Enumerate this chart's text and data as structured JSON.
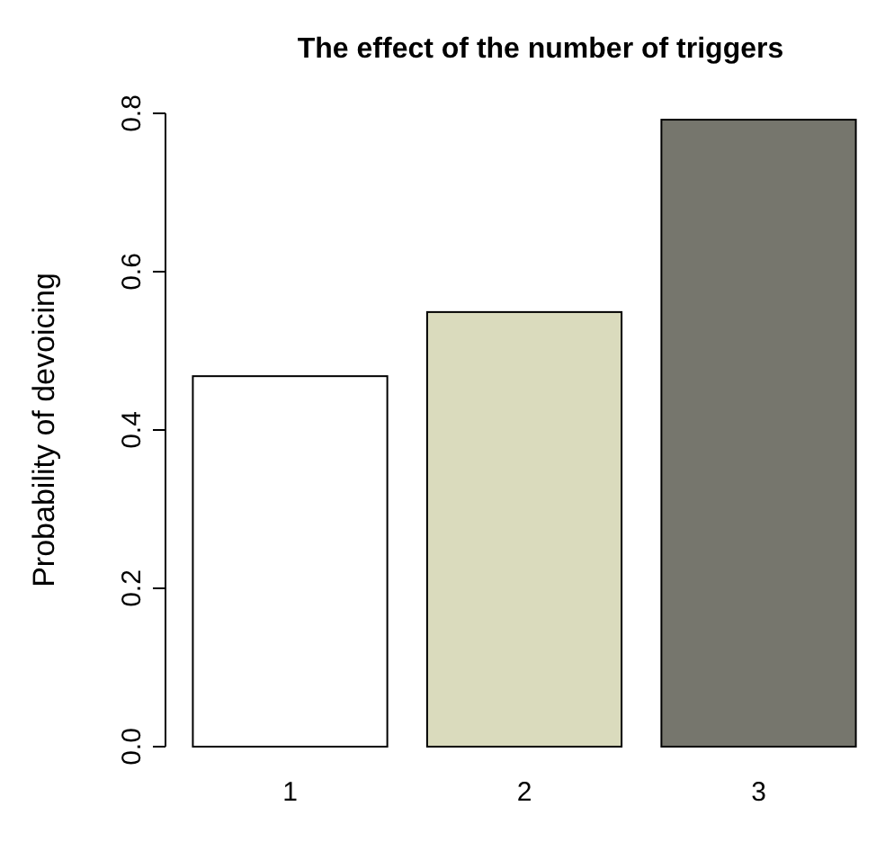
{
  "chart_data": {
    "type": "bar",
    "title": "The effect of the number of triggers",
    "ylabel": "Probability of devoicing",
    "categories": [
      "1",
      "2",
      "3"
    ],
    "values": [
      0.468,
      0.549,
      0.792
    ],
    "colors": [
      "#ffffff",
      "#dadbbd",
      "#76766d"
    ],
    "ylim": [
      0,
      0.8
    ],
    "yticks": [
      {
        "value": 0,
        "label": "0.0"
      },
      {
        "value": 0.2,
        "label": "0.2"
      },
      {
        "value": 0.4,
        "label": "0.4"
      },
      {
        "value": 0.6,
        "label": "0.6"
      },
      {
        "value": 0.8,
        "label": "0.8"
      }
    ]
  }
}
